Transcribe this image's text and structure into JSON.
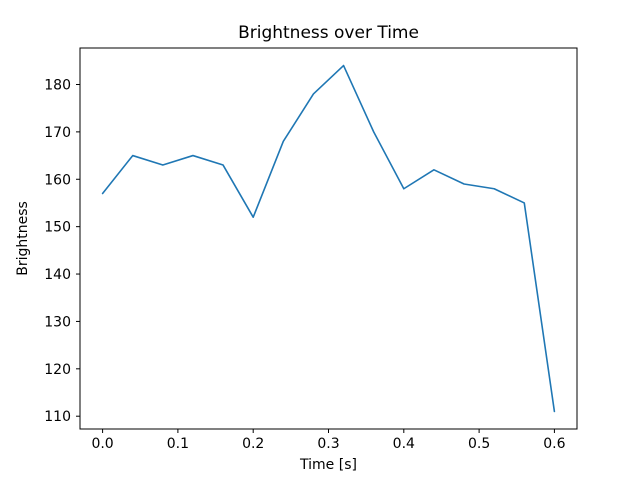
{
  "chart_data": {
    "type": "line",
    "title": "Brightness over Time",
    "xlabel": "Time [s]",
    "ylabel": "Brightness",
    "x": [
      0.0,
      0.04,
      0.08,
      0.12,
      0.16,
      0.2,
      0.24,
      0.28,
      0.32,
      0.36,
      0.4,
      0.44,
      0.48,
      0.52,
      0.56,
      0.6
    ],
    "values": [
      157,
      165,
      163,
      165,
      163,
      152,
      168,
      178,
      184,
      170,
      158,
      162,
      159,
      158,
      155,
      111
    ],
    "xlim": [
      -0.03,
      0.63
    ],
    "ylim": [
      107.3,
      187.7
    ],
    "xticks": [
      0.0,
      0.1,
      0.2,
      0.3,
      0.4,
      0.5,
      0.6
    ],
    "xtick_labels": [
      "0.0",
      "0.1",
      "0.2",
      "0.3",
      "0.4",
      "0.5",
      "0.6"
    ],
    "yticks": [
      110,
      120,
      130,
      140,
      150,
      160,
      170,
      180
    ],
    "ytick_labels": [
      "110",
      "120",
      "130",
      "140",
      "150",
      "160",
      "170",
      "180"
    ],
    "line_color": "#1f77b4",
    "axis_color": "#000000",
    "background_color": "#ffffff",
    "grid": false,
    "legend": null
  }
}
